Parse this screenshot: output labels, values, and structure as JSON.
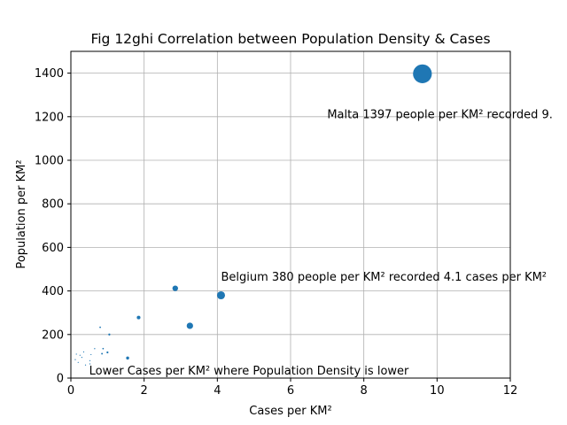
{
  "chart_data": {
    "type": "scatter",
    "title": "Fig 12ghi Correlation between Population Density & Cases",
    "xlabel": "Cases per KM²",
    "ylabel": "Population per KM²",
    "xlim": [
      0,
      12
    ],
    "ylim": [
      0,
      1500
    ],
    "xticks": [
      0,
      2,
      4,
      6,
      8,
      10,
      12
    ],
    "yticks": [
      0,
      200,
      400,
      600,
      800,
      1000,
      1200,
      1400
    ],
    "grid": true,
    "color": "#1f77b4",
    "points": [
      {
        "x": 9.6,
        "y": 1397,
        "size": 9.6
      },
      {
        "x": 4.1,
        "y": 380,
        "size": 4.1
      },
      {
        "x": 3.25,
        "y": 240,
        "size": 3.25
      },
      {
        "x": 2.85,
        "y": 412,
        "size": 2.85
      },
      {
        "x": 1.85,
        "y": 278,
        "size": 1.85
      },
      {
        "x": 1.55,
        "y": 92,
        "size": 1.55
      },
      {
        "x": 1.05,
        "y": 200,
        "size": 1.05
      },
      {
        "x": 1.0,
        "y": 118,
        "size": 1.0
      },
      {
        "x": 0.85,
        "y": 112,
        "size": 0.85
      },
      {
        "x": 0.88,
        "y": 135,
        "size": 0.8
      },
      {
        "x": 0.8,
        "y": 233,
        "size": 0.8
      },
      {
        "x": 0.65,
        "y": 135,
        "size": 0.6
      },
      {
        "x": 0.55,
        "y": 108,
        "size": 0.55
      },
      {
        "x": 0.52,
        "y": 65,
        "size": 0.55
      },
      {
        "x": 0.52,
        "y": 80,
        "size": 0.5
      },
      {
        "x": 0.35,
        "y": 120,
        "size": 0.35
      },
      {
        "x": 0.3,
        "y": 95,
        "size": 0.3
      },
      {
        "x": 0.25,
        "y": 105,
        "size": 0.25
      },
      {
        "x": 0.2,
        "y": 72,
        "size": 0.2
      },
      {
        "x": 0.15,
        "y": 110,
        "size": 0.15
      },
      {
        "x": 0.4,
        "y": 60,
        "size": 0.2
      },
      {
        "x": 0.12,
        "y": 85,
        "size": 0.12
      }
    ],
    "annotations": [
      {
        "text": "Malta 1397 people per KM² recorded 9.",
        "x": 7.0,
        "y": 1180
      },
      {
        "text": "Belgium 380 people per KM² recorded 4.1 cases per KM²",
        "x": 4.1,
        "y": 435
      },
      {
        "text": "Lower Cases per KM² where Population Density is lower",
        "x": 0.5,
        "y": 5
      }
    ]
  }
}
